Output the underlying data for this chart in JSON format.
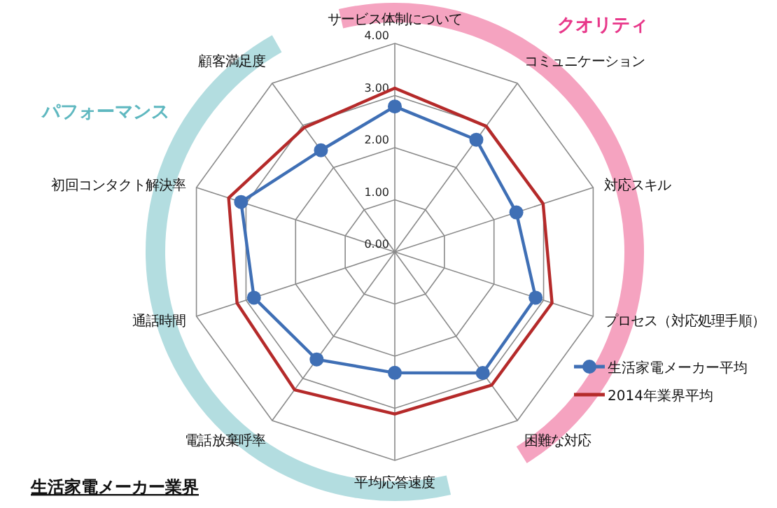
{
  "chart_data": {
    "type": "radar",
    "title": "生活家電メーカー業界",
    "categories": [
      "サービス体制について",
      "コミュニケーション",
      "対応スキル",
      "プロセス（対応処理手順）",
      "困難な対応",
      "平均応答速度",
      "電話放棄呼率",
      "通話時間",
      "初回コンタクト解決率",
      "顧客満足度"
    ],
    "series": [
      {
        "name": "生活家電メーカー平均",
        "color": "#3f6fb5",
        "marker": "circle",
        "values": [
          2.79,
          2.66,
          2.45,
          2.84,
          2.87,
          2.32,
          2.55,
          2.84,
          3.1,
          2.41
        ]
      },
      {
        "name": "2014年業界平均",
        "color": "#b52a2a",
        "marker": "none",
        "values": [
          3.14,
          2.98,
          2.99,
          3.17,
          3.16,
          3.11,
          3.27,
          3.18,
          3.35,
          2.95
        ]
      }
    ],
    "ylim": [
      0,
      4
    ],
    "yticks": [
      {
        "value": 0,
        "label": "0.00"
      },
      {
        "value": 1,
        "label": "1.00"
      },
      {
        "value": 2,
        "label": "2.00"
      },
      {
        "value": 3,
        "label": "3.00"
      },
      {
        "value": 4,
        "label": "4.00"
      }
    ],
    "grid": true,
    "legend": "right",
    "annotations": [
      "クオリティ",
      "パフォーマンス"
    ]
  }
}
